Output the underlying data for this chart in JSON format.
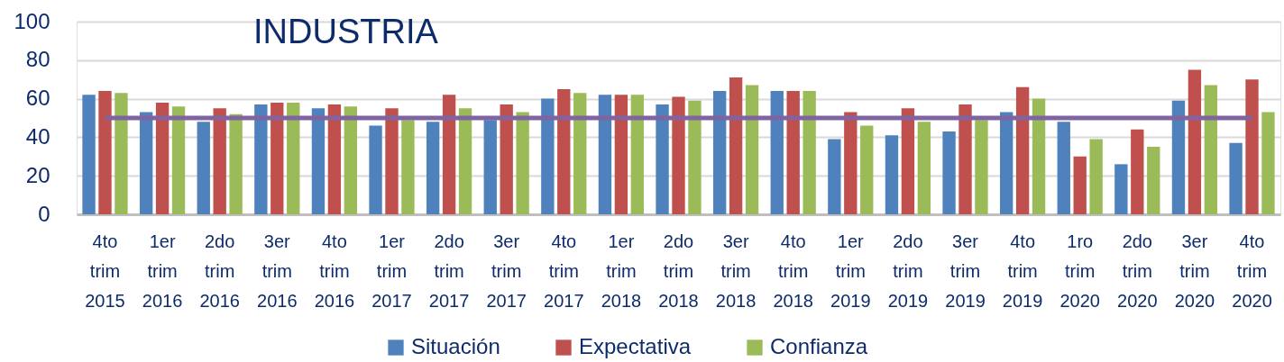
{
  "chart_data": {
    "type": "bar",
    "title": "INDUSTRIA",
    "categories": [
      "4to trim 2015",
      "1er trim 2016",
      "2do trim 2016",
      "3er trim 2016",
      "4to trim 2016",
      "1er trim 2017",
      "2do trim 2017",
      "3er trim 2017",
      "4to trim 2017",
      "1er trim 2018",
      "2do trim 2018",
      "3er trim 2018",
      "4to trim 2018",
      "1er trim 2019",
      "2do trim 2019",
      "3er trim 2019",
      "4to trim 2019",
      "1ro trim 2020",
      "2do trim 2020",
      "3er trim 2020",
      "4to trim 2020"
    ],
    "series": [
      {
        "name": "Situación",
        "color": "#4f81bd",
        "values": [
          62,
          53,
          48,
          57,
          55,
          46,
          48,
          49,
          60,
          62,
          57,
          64,
          64,
          39,
          41,
          43,
          53,
          48,
          26,
          59,
          37
        ]
      },
      {
        "name": "Expectativa",
        "color": "#c0504d",
        "values": [
          64,
          58,
          55,
          58,
          57,
          55,
          62,
          57,
          65,
          62,
          61,
          71,
          64,
          53,
          55,
          57,
          66,
          30,
          44,
          75,
          70
        ]
      },
      {
        "name": "Confianza",
        "color": "#9bbb59",
        "values": [
          63,
          56,
          52,
          58,
          56,
          49,
          55,
          53,
          63,
          62,
          59,
          67,
          64,
          46,
          48,
          49,
          60,
          39,
          35,
          67,
          53
        ]
      }
    ],
    "ylim": [
      0,
      100
    ],
    "yticks": [
      0,
      20,
      40,
      60,
      80,
      100
    ],
    "grid": "y",
    "legend": "bottom",
    "ref_lines": [
      {
        "axis": "y",
        "value": 50,
        "color": "#8064a2"
      }
    ]
  }
}
